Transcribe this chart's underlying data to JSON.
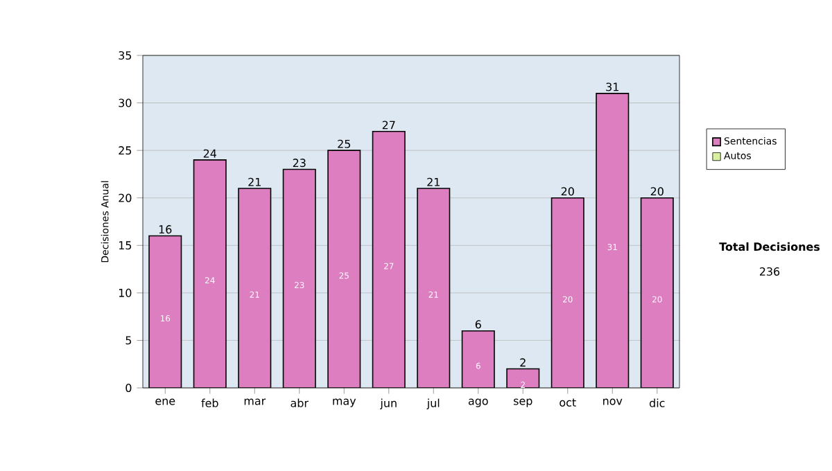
{
  "chart_data": {
    "type": "bar",
    "ylabel": "Decisiones Anual",
    "categories": [
      "ene",
      "feb",
      "mar",
      "abr",
      "may",
      "jun",
      "jul",
      "ago",
      "sep",
      "oct",
      "nov",
      "dic"
    ],
    "series": [
      {
        "name": "Sentencias",
        "color": "#dc7ec0",
        "values": [
          16,
          24,
          21,
          23,
          25,
          27,
          21,
          6,
          2,
          20,
          31,
          20
        ],
        "value_labels": [
          "16",
          "24",
          "21",
          "23",
          "25",
          "27",
          "21",
          "6",
          "2",
          "20",
          "31",
          "20"
        ]
      },
      {
        "name": "Autos",
        "color": "#d8f0a0",
        "values": [
          0,
          0,
          0,
          0,
          0,
          0,
          0,
          0,
          0,
          0,
          0,
          0
        ]
      }
    ],
    "stacked": true,
    "totals": [
      "16",
      "24",
      "21",
      "23",
      "25",
      "27",
      "21",
      "6",
      "2",
      "20",
      "31",
      "20"
    ],
    "ylim": [
      0,
      35
    ],
    "yticks": [
      0,
      5,
      10,
      15,
      20,
      25,
      30,
      35
    ],
    "grid": "y",
    "legend": "right",
    "annotations": [
      "Total Decisiones",
      "236"
    ]
  }
}
